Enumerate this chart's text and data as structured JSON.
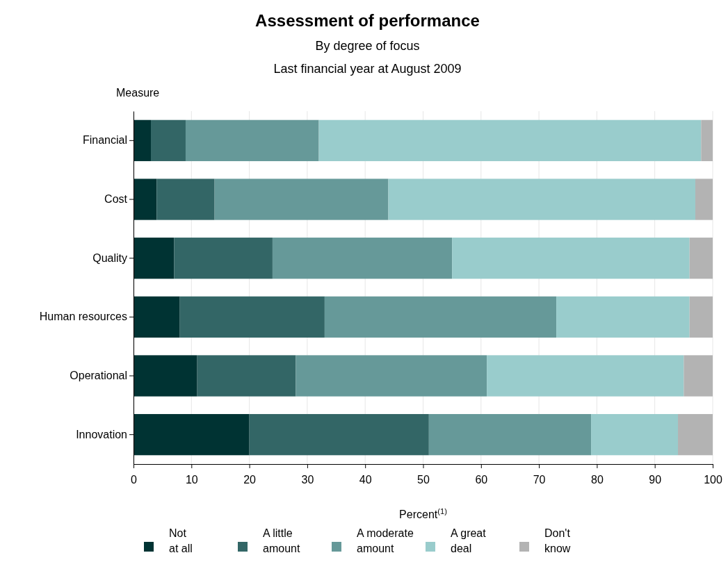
{
  "chart_data": {
    "type": "bar",
    "orientation": "horizontal",
    "stacked": true,
    "title": "Assessment of performance",
    "subtitle": "By degree of focus\nLast financial year at August 2009",
    "ylabel": "Measure",
    "xlabel": "Percent$^{(1)}$",
    "categories": [
      "Financial",
      "Cost",
      "Quality",
      "Human resources",
      "Operational",
      "Innovation"
    ],
    "series": [
      {
        "name": "Not\nat all",
        "color": "#003333",
        "values": [
          3,
          4,
          7,
          8,
          11,
          20
        ]
      },
      {
        "name": "A little\namount",
        "color": "#336666",
        "values": [
          6,
          10,
          17,
          25,
          17,
          31
        ]
      },
      {
        "name": "A moderate\namount",
        "color": "#669999",
        "values": [
          23,
          30,
          31,
          40,
          33,
          28
        ]
      },
      {
        "name": "A great\ndeal",
        "color": "#99cccc",
        "values": [
          66,
          53,
          41,
          23,
          34,
          15
        ]
      },
      {
        "name": "Don't\nknow",
        "color": "#b3b3b3",
        "values": [
          2,
          3,
          4,
          4,
          5,
          6
        ]
      }
    ],
    "xlim": [
      0,
      100
    ],
    "xticks": [
      0,
      10,
      20,
      30,
      40,
      50,
      60,
      70,
      80,
      90,
      100
    ],
    "grid": "x",
    "legend": "bottom"
  }
}
